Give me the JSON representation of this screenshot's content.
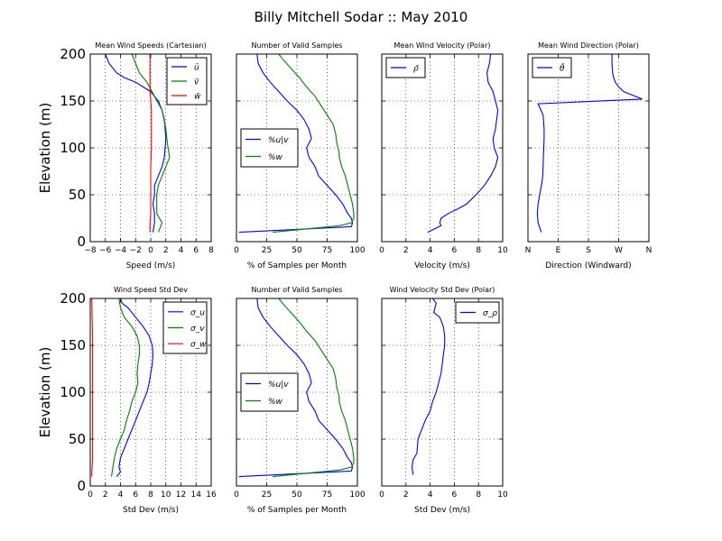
{
  "figure": {
    "title": "Billy Mitchell Sodar :: May 2010"
  },
  "chart_data": [
    {
      "type": "line",
      "title": "Mean Wind Speeds (Cartesian)",
      "xlabel": "Speed (m/s)",
      "ylabel": "Elevation (m)",
      "xlim": [
        -8,
        8
      ],
      "ylim": [
        0,
        200
      ],
      "xticks": [
        -8,
        -6,
        -4,
        -2,
        0,
        2,
        4,
        6,
        8
      ],
      "xtick_labels": [
        "−8",
        "−6",
        "−4",
        "−2",
        "0",
        "2",
        "4",
        "6",
        "8"
      ],
      "yticks": [
        0,
        50,
        100,
        150,
        200
      ],
      "ytick_labels": [
        "0",
        "50",
        "100",
        "150",
        "200"
      ],
      "grid": true,
      "legend": "top-right",
      "series": [
        {
          "name": "ū",
          "color": "#0000ff",
          "x": [
            -6.0,
            -5.5,
            -4.5,
            -3.5,
            -2.0,
            -1.0,
            0.0,
            1.0,
            1.5,
            1.8,
            2.0,
            1.8,
            1.5,
            1.0,
            0.5,
            0.5,
            0.3,
            0.5,
            0.5,
            0.3
          ],
          "y": [
            200,
            190,
            180,
            175,
            170,
            165,
            160,
            150,
            140,
            130,
            110,
            90,
            80,
            70,
            60,
            50,
            40,
            30,
            20,
            10
          ]
        },
        {
          "name": "v̄",
          "color": "#008000",
          "x": [
            -2.5,
            -2.0,
            -1.5,
            -0.5,
            0.5,
            1.5,
            2.0,
            2.2,
            2.5,
            2.0,
            1.5,
            1.0,
            0.8,
            0.8,
            0.8,
            1.5,
            1.0
          ],
          "y": [
            200,
            190,
            180,
            170,
            155,
            140,
            120,
            105,
            90,
            80,
            70,
            60,
            50,
            40,
            30,
            20,
            10
          ]
        },
        {
          "name": "w̄",
          "color": "#ff0000",
          "x": [
            -0.1,
            -0.1,
            -0.1,
            -0.1,
            -0.1,
            0.0,
            0.1,
            0.1,
            0.1,
            0.1,
            0.1,
            0.0,
            0.0,
            0.0,
            0.0,
            -0.1,
            -0.1
          ],
          "y": [
            200,
            190,
            180,
            170,
            160,
            150,
            140,
            130,
            120,
            110,
            100,
            80,
            60,
            40,
            30,
            20,
            10
          ]
        }
      ]
    },
    {
      "type": "line",
      "title": "Number of Valid Samples",
      "xlabel": "% of Samples per Month",
      "ylabel": "",
      "xlim": [
        0,
        100
      ],
      "ylim": [
        0,
        200
      ],
      "xticks": [
        0,
        25,
        50,
        75,
        100
      ],
      "xtick_labels": [
        "0",
        "25",
        "50",
        "75",
        "100"
      ],
      "yticks": [
        0,
        50,
        100,
        150,
        200
      ],
      "ytick_labels": [],
      "grid": true,
      "legend": "center-left",
      "series": [
        {
          "name": "%u|v",
          "color": "#0000ff",
          "x": [
            17,
            18,
            22,
            28,
            35,
            42,
            50,
            56,
            60,
            62,
            58,
            60,
            65,
            68,
            75,
            82,
            88,
            92,
            95,
            96,
            95,
            80,
            2
          ],
          "y": [
            200,
            190,
            180,
            170,
            160,
            150,
            140,
            130,
            120,
            110,
            100,
            90,
            80,
            70,
            60,
            50,
            40,
            30,
            25,
            20,
            16,
            15,
            10
          ]
        },
        {
          "name": "%w",
          "color": "#008000",
          "x": [
            35,
            38,
            45,
            52,
            58,
            65,
            70,
            75,
            80,
            82,
            83,
            85,
            85,
            87,
            90,
            92,
            94,
            96,
            97,
            97,
            95,
            85,
            30
          ],
          "y": [
            200,
            195,
            185,
            175,
            165,
            155,
            145,
            135,
            125,
            115,
            105,
            95,
            90,
            80,
            70,
            60,
            50,
            40,
            30,
            25,
            20,
            17,
            10
          ]
        }
      ]
    },
    {
      "type": "line",
      "title": "Mean Wind Velocity (Polar)",
      "xlabel": "Velocity (m/s)",
      "ylabel": "",
      "xlim": [
        0,
        10
      ],
      "ylim": [
        0,
        200
      ],
      "xticks": [
        0,
        2,
        4,
        6,
        8,
        10
      ],
      "xtick_labels": [
        "0",
        "2",
        "4",
        "6",
        "8",
        "10"
      ],
      "yticks": [
        0,
        50,
        100,
        150,
        200
      ],
      "ytick_labels": [],
      "grid": true,
      "legend": "top-left",
      "series": [
        {
          "name": "ρ̄",
          "color": "#0000ff",
          "x": [
            9.0,
            8.9,
            8.7,
            8.8,
            9.2,
            9.4,
            9.6,
            9.5,
            9.4,
            9.2,
            9.3,
            9.6,
            9.4,
            9.0,
            8.5,
            7.8,
            7.0,
            6.3,
            5.5,
            4.9,
            4.8,
            4.9,
            3.8
          ],
          "y": [
            200,
            190,
            180,
            170,
            160,
            150,
            140,
            130,
            120,
            110,
            100,
            90,
            80,
            70,
            60,
            50,
            40,
            35,
            30,
            25,
            20,
            17,
            10
          ]
        }
      ]
    },
    {
      "type": "line",
      "title": "Mean Wind Direction (Polar)",
      "xlabel": "Direction (Windward)",
      "ylabel": "",
      "xlim": [
        0,
        360
      ],
      "ylim": [
        0,
        200
      ],
      "xticks": [
        0,
        90,
        180,
        270,
        360
      ],
      "xtick_labels": [
        "N",
        "E",
        "S",
        "W",
        "N"
      ],
      "yticks": [
        0,
        50,
        100,
        150,
        200
      ],
      "ytick_labels": [],
      "grid": true,
      "legend": "top-left",
      "series": [
        {
          "name": "θ̄",
          "color": "#0000ff",
          "x": [
            250,
            250,
            252,
            255,
            260,
            270,
            285,
            340,
            30,
            45,
            48,
            48,
            47,
            46,
            45,
            44,
            40,
            35,
            30,
            28,
            30,
            40
          ],
          "y": [
            200,
            190,
            180,
            175,
            170,
            165,
            160,
            152,
            147,
            135,
            120,
            110,
            100,
            90,
            80,
            70,
            60,
            50,
            40,
            30,
            20,
            10
          ]
        }
      ]
    },
    {
      "type": "line",
      "title": "Wind Speed Std Dev",
      "xlabel": "Std Dev (m/s)",
      "ylabel": "Elevation (m)",
      "xlim": [
        0,
        16
      ],
      "ylim": [
        0,
        200
      ],
      "xticks": [
        0,
        2,
        4,
        6,
        8,
        10,
        12,
        14,
        16
      ],
      "xtick_labels": [
        "0",
        "2",
        "4",
        "6",
        "8",
        "10",
        "12",
        "14",
        "16"
      ],
      "yticks": [
        0,
        50,
        100,
        150,
        200
      ],
      "ytick_labels": [
        "0",
        "50",
        "100",
        "150",
        "200"
      ],
      "grid": true,
      "legend": "top-right",
      "series": [
        {
          "name": "σ_u",
          "color": "#0000ff",
          "x": [
            4.0,
            4.2,
            5.0,
            6.0,
            7.0,
            7.8,
            8.2,
            8.3,
            8.2,
            8.0,
            7.8,
            7.5,
            7.0,
            6.5,
            6.0,
            5.5,
            5.0,
            4.5,
            4.0,
            3.8,
            4.0,
            3.5
          ],
          "y": [
            200,
            195,
            190,
            180,
            170,
            160,
            150,
            140,
            130,
            120,
            110,
            100,
            90,
            80,
            70,
            60,
            50,
            40,
            30,
            20,
            15,
            10
          ]
        },
        {
          "name": "σ_v",
          "color": "#008000",
          "x": [
            3.8,
            4.0,
            4.5,
            5.5,
            6.2,
            6.5,
            6.5,
            6.3,
            6.2,
            6.3,
            6.0,
            5.5,
            5.2,
            4.8,
            4.5,
            4.0,
            3.5,
            3.2,
            3.0,
            2.8
          ],
          "y": [
            200,
            190,
            180,
            170,
            160,
            150,
            140,
            130,
            120,
            110,
            100,
            90,
            80,
            70,
            60,
            50,
            40,
            30,
            20,
            10
          ]
        },
        {
          "name": "σ_w",
          "color": "#ff0000",
          "x": [
            0.2,
            0.25,
            0.3,
            0.3,
            0.3,
            0.3,
            0.3,
            0.3,
            0.3,
            0.3,
            0.25,
            0.2,
            0.2
          ],
          "y": [
            200,
            180,
            160,
            140,
            120,
            100,
            80,
            60,
            40,
            30,
            20,
            15,
            10
          ]
        }
      ]
    },
    {
      "type": "line",
      "title": "Number of Valid Samples",
      "xlabel": "% of Samples per Month",
      "ylabel": "",
      "xlim": [
        0,
        100
      ],
      "ylim": [
        0,
        200
      ],
      "xticks": [
        0,
        25,
        50,
        75,
        100
      ],
      "xtick_labels": [
        "0",
        "25",
        "50",
        "75",
        "100"
      ],
      "yticks": [
        0,
        50,
        100,
        150,
        200
      ],
      "ytick_labels": [],
      "grid": true,
      "legend": "center-left",
      "series": [
        {
          "name": "%u|v",
          "color": "#0000ff",
          "x": [
            17,
            18,
            22,
            28,
            35,
            42,
            50,
            56,
            60,
            62,
            58,
            60,
            65,
            68,
            75,
            82,
            88,
            92,
            95,
            96,
            95,
            80,
            2
          ],
          "y": [
            200,
            190,
            180,
            170,
            160,
            150,
            140,
            130,
            120,
            110,
            100,
            90,
            80,
            70,
            60,
            50,
            40,
            30,
            25,
            20,
            16,
            15,
            10
          ]
        },
        {
          "name": "%w",
          "color": "#008000",
          "x": [
            35,
            38,
            45,
            52,
            58,
            65,
            70,
            75,
            80,
            82,
            83,
            85,
            85,
            87,
            90,
            92,
            94,
            96,
            97,
            97,
            95,
            85,
            30
          ],
          "y": [
            200,
            195,
            185,
            175,
            165,
            155,
            145,
            135,
            125,
            115,
            105,
            95,
            90,
            80,
            70,
            60,
            50,
            40,
            30,
            25,
            20,
            17,
            10
          ]
        }
      ]
    },
    {
      "type": "line",
      "title": "Wind Velocity Std Dev (Polar)",
      "xlabel": "Std Dev (m/s)",
      "ylabel": "",
      "xlim": [
        0,
        10
      ],
      "ylim": [
        0,
        200
      ],
      "xticks": [
        0,
        2,
        4,
        6,
        8,
        10
      ],
      "xtick_labels": [
        "0",
        "2",
        "4",
        "6",
        "8",
        "10"
      ],
      "yticks": [
        0,
        50,
        100,
        150,
        200
      ],
      "ytick_labels": [],
      "grid": true,
      "legend": "top-right",
      "series": [
        {
          "name": "σ_ρ",
          "color": "#0000ff",
          "x": [
            4.2,
            4.5,
            4.3,
            4.8,
            5.1,
            5.2,
            5.2,
            5.1,
            5.0,
            4.9,
            4.7,
            4.5,
            4.2,
            4.0,
            3.6,
            3.3,
            3.0,
            2.9,
            2.6,
            2.5,
            2.6
          ],
          "y": [
            200,
            195,
            185,
            180,
            170,
            160,
            150,
            140,
            130,
            120,
            110,
            100,
            90,
            80,
            70,
            60,
            50,
            35,
            28,
            20,
            12
          ]
        }
      ]
    }
  ]
}
